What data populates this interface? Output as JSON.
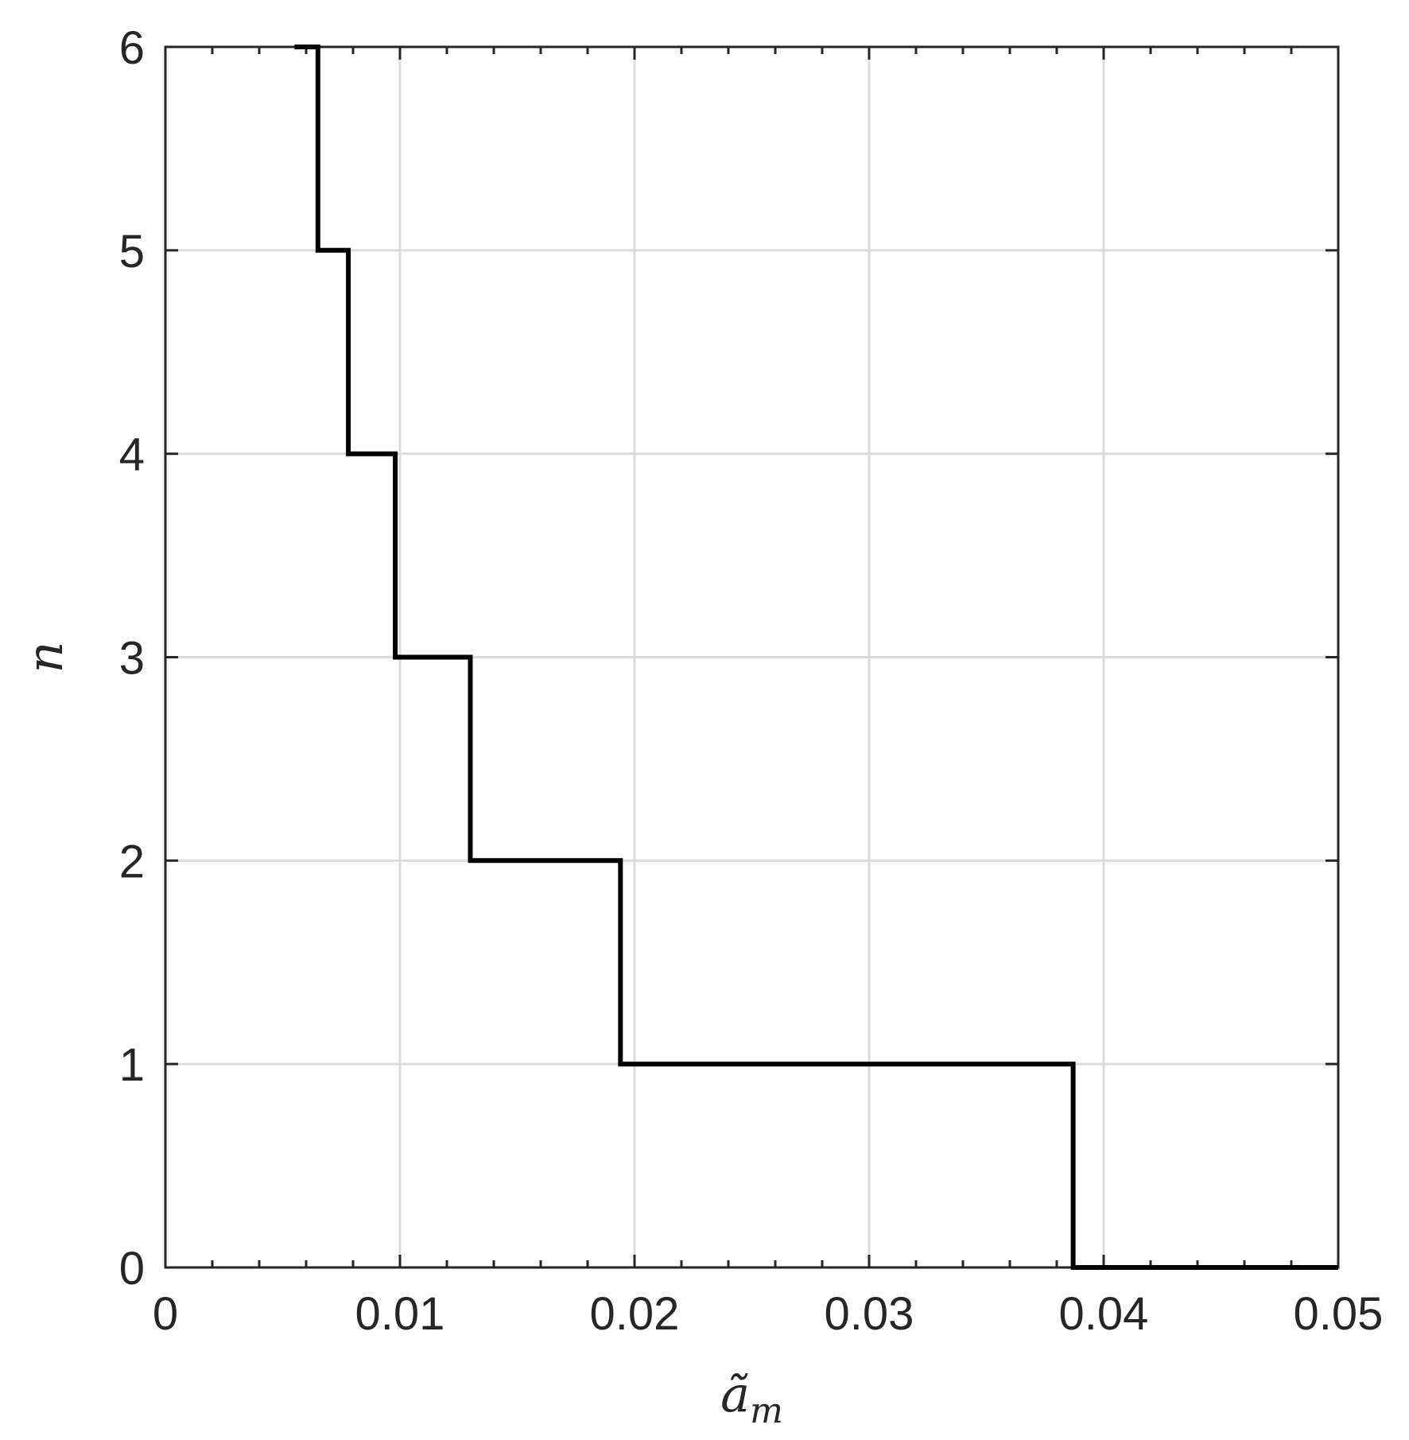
{
  "chart_data": {
    "type": "line",
    "xlabel": "ã",
    "xlabel_sub": "m",
    "ylabel": "n",
    "xlim": [
      0,
      0.05
    ],
    "ylim": [
      0,
      6
    ],
    "xticks": [
      0,
      0.01,
      0.02,
      0.03,
      0.04,
      0.05
    ],
    "xtick_labels": [
      "0",
      "0.01",
      "0.02",
      "0.03",
      "0.04",
      "0.05"
    ],
    "yticks": [
      0,
      1,
      2,
      3,
      4,
      5,
      6
    ],
    "ytick_labels": [
      "0",
      "1",
      "2",
      "3",
      "4",
      "5",
      "6"
    ],
    "x_minor_step": 0.002,
    "y_minor_step": 1,
    "grid": true,
    "series": [
      {
        "style": "stairs",
        "color": "#000000",
        "points": [
          [
            0.0055,
            6
          ],
          [
            0.0065,
            6
          ],
          [
            0.0065,
            5
          ],
          [
            0.0078,
            5
          ],
          [
            0.0078,
            4
          ],
          [
            0.0098,
            4
          ],
          [
            0.0098,
            3
          ],
          [
            0.013,
            3
          ],
          [
            0.013,
            2
          ],
          [
            0.0194,
            2
          ],
          [
            0.0194,
            1
          ],
          [
            0.0387,
            1
          ],
          [
            0.0387,
            0
          ],
          [
            0.05,
            0
          ]
        ]
      }
    ]
  }
}
